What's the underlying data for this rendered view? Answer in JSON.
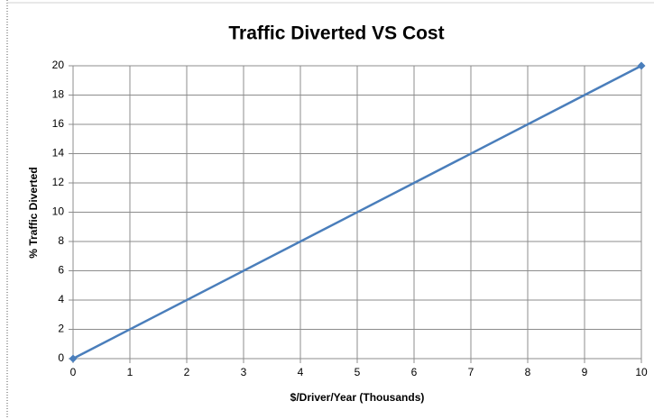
{
  "chart_data": {
    "type": "line",
    "title": "Traffic Diverted VS Cost",
    "x_label": "$/Driver/Year (Thousands)",
    "y_label": "% Traffic Diverted",
    "x": [
      0,
      10
    ],
    "series": [
      {
        "color": "#4a7ebb",
        "values": [
          0,
          20
        ]
      }
    ],
    "xlim": [
      0,
      10
    ],
    "xticks": [
      0,
      1,
      2,
      3,
      4,
      5,
      6,
      7,
      8,
      9,
      10
    ],
    "ylim": [
      0,
      20
    ],
    "yticks": [
      0,
      2,
      4,
      6,
      8,
      10,
      12,
      14,
      16,
      18,
      20
    ],
    "grid": true
  }
}
